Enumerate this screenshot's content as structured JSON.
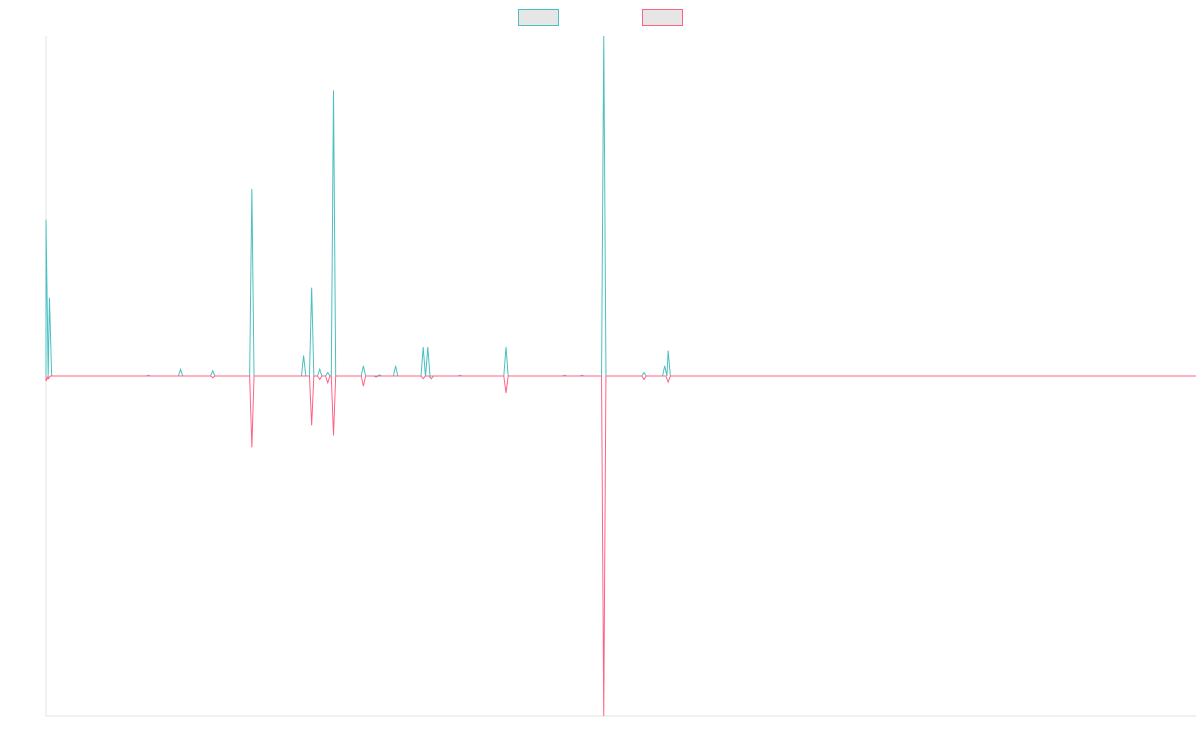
{
  "chart_data": {
    "type": "line",
    "title": "",
    "xlabel": "",
    "ylabel": "",
    "x_range": [
      0,
      1000
    ],
    "ylim": [
      -1.0,
      1.0
    ],
    "grid": false,
    "legend": "top-center",
    "baseline": 0,
    "series": [
      {
        "color": "#4bc0c0",
        "fill": "#e6e6e6",
        "peaks": [
          {
            "x": 0.0,
            "y": 0.46
          },
          {
            "x": 3.0,
            "y": 0.23
          },
          {
            "x": 89.0,
            "y": 0.002
          },
          {
            "x": 117.0,
            "y": 0.02
          },
          {
            "x": 145.0,
            "y": 0.015
          },
          {
            "x": 179.0,
            "y": 0.55
          },
          {
            "x": 224.0,
            "y": 0.06
          },
          {
            "x": 231.0,
            "y": 0.26
          },
          {
            "x": 238.0,
            "y": 0.02
          },
          {
            "x": 245.0,
            "y": 0.01
          },
          {
            "x": 250.0,
            "y": 0.84
          },
          {
            "x": 276.0,
            "y": 0.03
          },
          {
            "x": 290.0,
            "y": 0.003
          },
          {
            "x": 304.0,
            "y": 0.03
          },
          {
            "x": 328.0,
            "y": 0.085
          },
          {
            "x": 332.0,
            "y": 0.085
          },
          {
            "x": 360.0,
            "y": 0.002
          },
          {
            "x": 400.0,
            "y": 0.085
          },
          {
            "x": 451.0,
            "y": 0.002
          },
          {
            "x": 466.0,
            "y": 0.002
          },
          {
            "x": 485.0,
            "y": 1.0
          },
          {
            "x": 520.0,
            "y": 0.01
          },
          {
            "x": 538.0,
            "y": 0.03
          },
          {
            "x": 541.0,
            "y": 0.075
          }
        ]
      },
      {
        "color": "#ff6384",
        "fill": "#e6e6e6",
        "peaks": [
          {
            "x": 0.0,
            "y": -0.015
          },
          {
            "x": 2.0,
            "y": -0.008
          },
          {
            "x": 145.0,
            "y": -0.005
          },
          {
            "x": 179.0,
            "y": -0.21
          },
          {
            "x": 231.0,
            "y": -0.145
          },
          {
            "x": 238.0,
            "y": -0.01
          },
          {
            "x": 245.0,
            "y": -0.02
          },
          {
            "x": 250.0,
            "y": -0.175
          },
          {
            "x": 276.0,
            "y": -0.03
          },
          {
            "x": 287.0,
            "y": -0.003
          },
          {
            "x": 328.0,
            "y": -0.008
          },
          {
            "x": 335.0,
            "y": -0.008
          },
          {
            "x": 400.0,
            "y": -0.05
          },
          {
            "x": 485.0,
            "y": -1.0
          },
          {
            "x": 520.0,
            "y": -0.01
          },
          {
            "x": 541.0,
            "y": -0.018
          }
        ]
      }
    ]
  }
}
